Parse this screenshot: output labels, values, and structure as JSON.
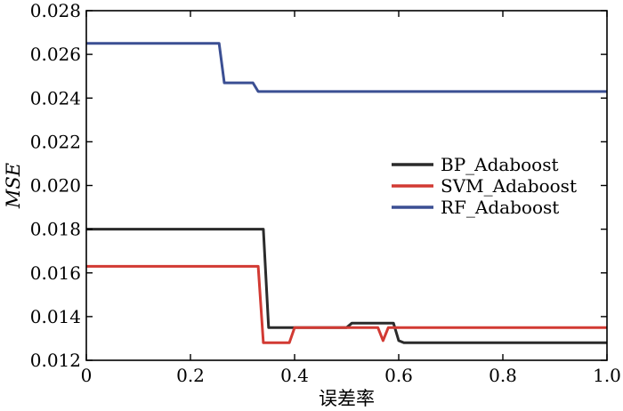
{
  "chart_data": {
    "type": "line",
    "title": "",
    "xlabel": "误差率",
    "ylabel": "MSE",
    "xlim": [
      0,
      1.0
    ],
    "ylim": [
      0.012,
      0.028
    ],
    "x_ticks": [
      0,
      0.2,
      0.4,
      0.6,
      0.8,
      1.0
    ],
    "x_tick_labels": [
      "0",
      "0.2",
      "0.4",
      "0.6",
      "0.8",
      "1.0"
    ],
    "y_ticks": [
      0.012,
      0.014,
      0.016,
      0.018,
      0.02,
      0.022,
      0.024,
      0.026,
      0.028
    ],
    "y_tick_labels": [
      "0.012",
      "0.014",
      "0.016",
      "0.018",
      "0.020",
      "0.022",
      "0.024",
      "0.026",
      "0.028"
    ],
    "grid": false,
    "legend_position": "center-right",
    "series": [
      {
        "name": "BP_Adaboost",
        "color": "#2b2b2b",
        "x": [
          0,
          0.34,
          0.35,
          0.5,
          0.51,
          0.59,
          0.6,
          0.61,
          0.62,
          1.0
        ],
        "y": [
          0.018,
          0.018,
          0.0135,
          0.0135,
          0.0137,
          0.0137,
          0.0129,
          0.0128,
          0.0128,
          0.0128
        ]
      },
      {
        "name": "SVM_Adaboost",
        "color": "#d23a33",
        "x": [
          0,
          0.33,
          0.34,
          0.39,
          0.4,
          0.56,
          0.57,
          0.58,
          1.0
        ],
        "y": [
          0.0163,
          0.0163,
          0.0128,
          0.0128,
          0.0135,
          0.0135,
          0.0129,
          0.0135,
          0.0135
        ]
      },
      {
        "name": "RF_Adaboost",
        "color": "#3b4f93",
        "x": [
          0,
          0.255,
          0.265,
          0.32,
          0.33,
          1.0
        ],
        "y": [
          0.0265,
          0.0265,
          0.0247,
          0.0247,
          0.0243,
          0.0243
        ]
      }
    ]
  }
}
